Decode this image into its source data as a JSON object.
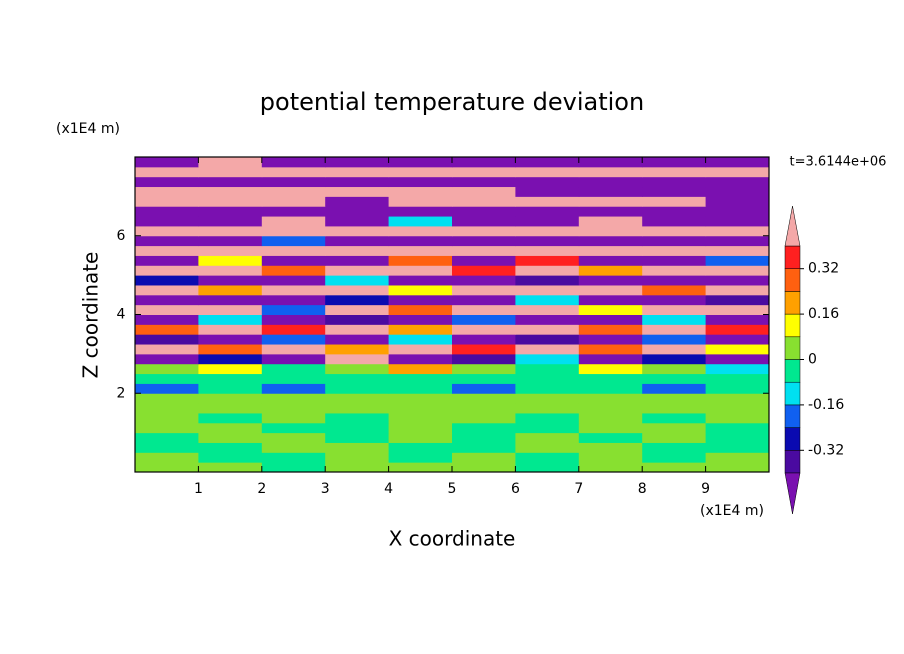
{
  "chart_data": {
    "type": "contour",
    "title": "potential temperature deviation",
    "x_label": "X coordinate",
    "y_label": "Z coordinate",
    "x_unit": "(x1E4 m)",
    "y_unit": "(x1E4 m)",
    "annotation": "t=3.6144e+06",
    "xlim": [
      0,
      10
    ],
    "ylim": [
      0,
      8
    ],
    "xticks": [
      1,
      2,
      3,
      4,
      5,
      6,
      7,
      8,
      9
    ],
    "yticks": [
      2,
      4,
      6
    ],
    "x_edges": [
      0,
      1,
      2,
      3,
      4,
      5,
      6,
      7,
      8,
      9,
      10
    ],
    "y_edges": [
      0,
      0.25,
      0.5,
      0.75,
      1,
      1.25,
      1.5,
      1.75,
      2,
      2.25,
      2.5,
      2.75,
      3,
      3.25,
      3.5,
      3.75,
      4,
      4.25,
      4.5,
      4.75,
      5,
      5.25,
      5.5,
      5.75,
      6,
      6.25,
      6.5,
      6.75,
      7,
      7.25,
      7.5,
      7.75,
      8
    ],
    "levels": [
      -0.4,
      -0.32,
      -0.24,
      -0.16,
      -0.08,
      0,
      0.08,
      0.16,
      0.24,
      0.32,
      0.4
    ],
    "colors": [
      "#7a10b0",
      "#4a0aa0",
      "#0a0ab0",
      "#1060f0",
      "#00e0f0",
      "#00e890",
      "#88e030",
      "#ffff00",
      "#ffa000",
      "#ff6010",
      "#ff2020",
      "#f4a8a8"
    ],
    "cbar_ticks": [
      0.32,
      0.16,
      0,
      -0.16,
      -0.32
    ],
    "z": [
      [
        0.04,
        0.04,
        -0.04,
        0.04,
        0.04,
        0.04,
        -0.04,
        0.04,
        0.04,
        0.04
      ],
      [
        0.04,
        -0.04,
        -0.04,
        0.04,
        -0.04,
        0.04,
        -0.04,
        0.04,
        -0.04,
        0.04
      ],
      [
        -0.04,
        -0.04,
        0.04,
        0.04,
        -0.04,
        -0.04,
        0.04,
        0.04,
        -0.04,
        -0.04
      ],
      [
        -0.04,
        0.04,
        0.04,
        -0.04,
        0.04,
        -0.04,
        0.04,
        -0.04,
        0.04,
        -0.04
      ],
      [
        0.04,
        0.04,
        -0.04,
        -0.04,
        0.04,
        -0.04,
        -0.04,
        0.04,
        0.04,
        -0.04
      ],
      [
        0.04,
        -0.04,
        0.04,
        -0.04,
        0.04,
        0.04,
        -0.04,
        0.04,
        -0.04,
        0.04
      ],
      [
        0.04,
        0.04,
        0.04,
        0.04,
        0.04,
        0.04,
        0.04,
        0.04,
        0.04,
        0.04
      ],
      [
        0.04,
        0.04,
        0.04,
        0.04,
        0.04,
        0.04,
        0.04,
        0.04,
        0.04,
        0.04
      ],
      [
        -0.2,
        -0.04,
        -0.2,
        -0.04,
        -0.04,
        -0.2,
        -0.04,
        -0.04,
        -0.2,
        -0.04
      ],
      [
        -0.04,
        -0.04,
        -0.04,
        -0.04,
        -0.04,
        -0.04,
        -0.04,
        -0.04,
        -0.04,
        -0.04
      ],
      [
        0.04,
        0.12,
        -0.04,
        0.04,
        0.2,
        0.04,
        -0.04,
        0.12,
        0.04,
        -0.12
      ],
      [
        -0.5,
        -0.28,
        -0.5,
        0.5,
        -0.5,
        -0.36,
        -0.12,
        -0.5,
        -0.28,
        -0.5
      ],
      [
        0.5,
        0.28,
        0.5,
        0.2,
        0.5,
        0.36,
        0.5,
        0.28,
        0.5,
        0.12
      ],
      [
        -0.36,
        -0.5,
        -0.2,
        -0.5,
        -0.12,
        -0.5,
        -0.36,
        -0.5,
        -0.2,
        -0.5
      ],
      [
        0.28,
        0.5,
        0.36,
        0.5,
        0.2,
        0.5,
        0.5,
        0.28,
        0.5,
        0.36
      ],
      [
        -0.5,
        -0.12,
        -0.5,
        -0.36,
        -0.5,
        -0.2,
        -0.5,
        -0.5,
        -0.12,
        -0.5
      ],
      [
        0.5,
        0.5,
        -0.2,
        0.5,
        0.28,
        0.5,
        0.5,
        0.12,
        0.5,
        0.5
      ],
      [
        -0.5,
        -0.5,
        -0.5,
        -0.28,
        -0.5,
        -0.5,
        -0.12,
        -0.5,
        -0.5,
        -0.36
      ],
      [
        0.5,
        0.2,
        0.5,
        0.5,
        0.12,
        0.5,
        0.5,
        0.5,
        0.28,
        0.5
      ],
      [
        -0.28,
        -0.5,
        -0.5,
        -0.12,
        -0.5,
        -0.5,
        -0.36,
        -0.5,
        -0.5,
        -0.5
      ],
      [
        0.5,
        0.5,
        0.28,
        0.5,
        0.5,
        0.36,
        0.5,
        0.2,
        0.5,
        0.5
      ],
      [
        -0.5,
        0.12,
        -0.5,
        -0.5,
        0.28,
        -0.5,
        0.36,
        -0.5,
        -0.5,
        -0.2
      ],
      [
        0.5,
        0.5,
        0.5,
        0.5,
        0.5,
        0.5,
        0.5,
        0.5,
        0.5,
        0.5
      ],
      [
        -0.5,
        -0.5,
        -0.2,
        -0.5,
        -0.5,
        -0.5,
        -0.5,
        -0.5,
        -0.5,
        -0.5
      ],
      [
        0.5,
        0.5,
        0.5,
        0.5,
        0.5,
        0.5,
        0.5,
        0.5,
        0.5,
        0.5
      ],
      [
        -0.5,
        -0.5,
        0.5,
        -0.5,
        -0.12,
        -0.5,
        -0.5,
        0.5,
        -0.5,
        -0.5
      ],
      [
        -0.5,
        -0.5,
        -0.5,
        -0.5,
        -0.5,
        -0.5,
        -0.5,
        -0.5,
        -0.5,
        -0.5
      ],
      [
        0.5,
        0.5,
        0.5,
        -0.5,
        0.5,
        0.5,
        0.5,
        0.5,
        0.5,
        -0.5
      ],
      [
        0.5,
        0.5,
        0.5,
        0.5,
        0.5,
        0.5,
        -0.5,
        -0.5,
        -0.5,
        -0.5
      ],
      [
        -0.5,
        -0.5,
        -0.5,
        -0.5,
        -0.5,
        -0.5,
        -0.5,
        -0.5,
        -0.5,
        -0.5
      ],
      [
        0.5,
        0.5,
        0.5,
        0.5,
        0.5,
        0.5,
        0.5,
        0.5,
        0.5,
        0.5
      ],
      [
        -0.5,
        0.5,
        -0.5,
        -0.5,
        -0.5,
        -0.5,
        -0.5,
        -0.5,
        -0.5,
        -0.5
      ]
    ]
  }
}
